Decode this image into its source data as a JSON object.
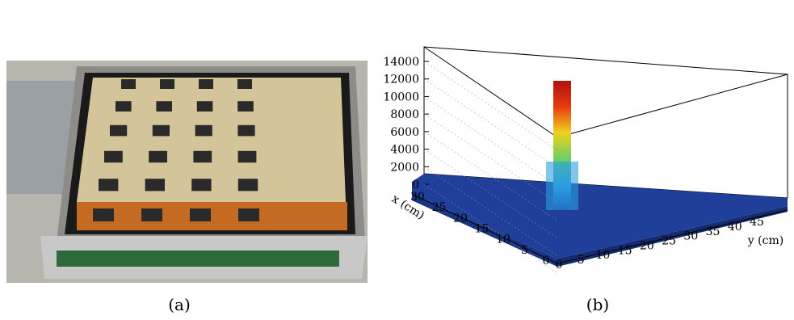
{
  "panels": [
    {
      "caption": "(a)"
    },
    {
      "caption": "(b)",
      "z_axis": {
        "ticks": [
          0,
          2000,
          4000,
          6000,
          8000,
          10000,
          12000,
          14000
        ]
      },
      "x_axis": {
        "label": "x (cm)",
        "ticks": [
          30,
          25,
          20,
          15,
          10,
          5,
          0
        ]
      },
      "y_axis": {
        "label": "y (cm)",
        "ticks": [
          0,
          5,
          10,
          15,
          20,
          25,
          30,
          35,
          40,
          45
        ]
      }
    }
  ]
}
